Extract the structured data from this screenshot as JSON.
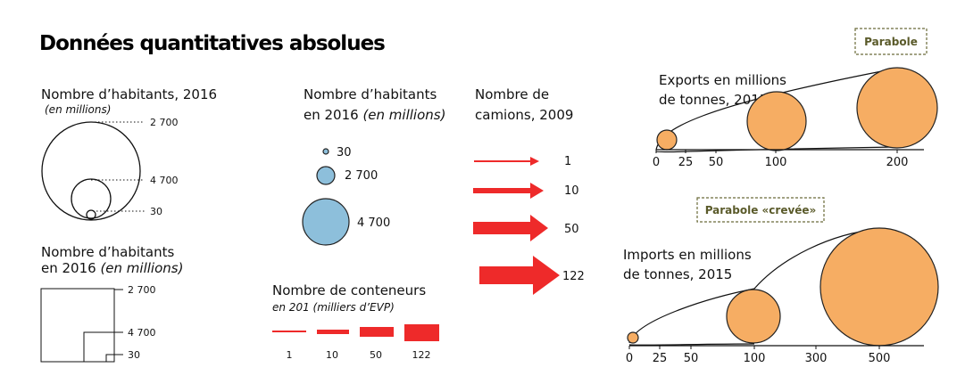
{
  "title": "Données quantitatives absolues",
  "circles_nested": {
    "title": "Nombre d’habitants, 2016",
    "subtitle": "(en millions)",
    "values": [
      "2 700",
      "4 700",
      "30"
    ]
  },
  "squares_nested": {
    "title_line1": "Nombre d’habitants",
    "title_line2_plain": "en 2016 ",
    "title_line2_italic": "(en millions)",
    "values": [
      "2 700",
      "4 700",
      "30"
    ]
  },
  "circles_separate": {
    "title_line1": "Nombre d’habitants",
    "title_line2_plain": "en 2016 ",
    "title_line2_italic": "(en millions)",
    "values": [
      "30",
      "2 700",
      "4 700"
    ],
    "color": "#8dbfdb"
  },
  "containers": {
    "title": "Nombre de conteneurs",
    "subtitle": "en 201 (milliers d’EVP)",
    "values": [
      "1",
      "10",
      "50",
      "122"
    ],
    "color": "#ee2a2a"
  },
  "trucks": {
    "title_line1": "Nombre de",
    "title_line2": "camions, 2009",
    "values": [
      "1",
      "10",
      "50",
      "122"
    ],
    "color": "#ee2a2a"
  },
  "exports": {
    "box_label": "Parabole",
    "title_line1": "Exports en millions",
    "title_line2": "de tonnes, 2015",
    "ticks": [
      "0",
      "25",
      "50",
      "100",
      "200"
    ],
    "color": "#f6ad63"
  },
  "imports": {
    "box_label": "Parabole «crevée»",
    "title_line1": "Imports en millions",
    "title_line2": "de tonnes, 2015",
    "ticks": [
      "0",
      "25",
      "50",
      "100",
      "300",
      "500"
    ],
    "color": "#f6ad63"
  }
}
